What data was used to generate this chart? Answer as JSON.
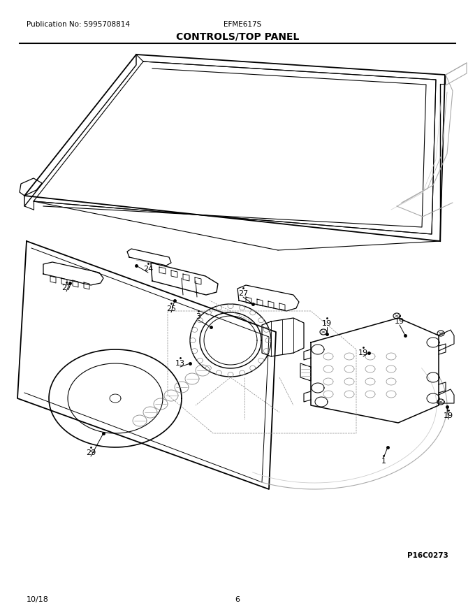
{
  "pub_no": "Publication No: 5995708814",
  "model": "EFME617S",
  "title": "CONTROLS/TOP PANEL",
  "date": "10/18",
  "page": "6",
  "diagram_id": "P16C0273",
  "bg_color": "#ffffff",
  "line_color": "#000000",
  "title_fontsize": 10,
  "header_fontsize": 7.5,
  "label_fontsize": 8,
  "footer_fontsize": 8
}
